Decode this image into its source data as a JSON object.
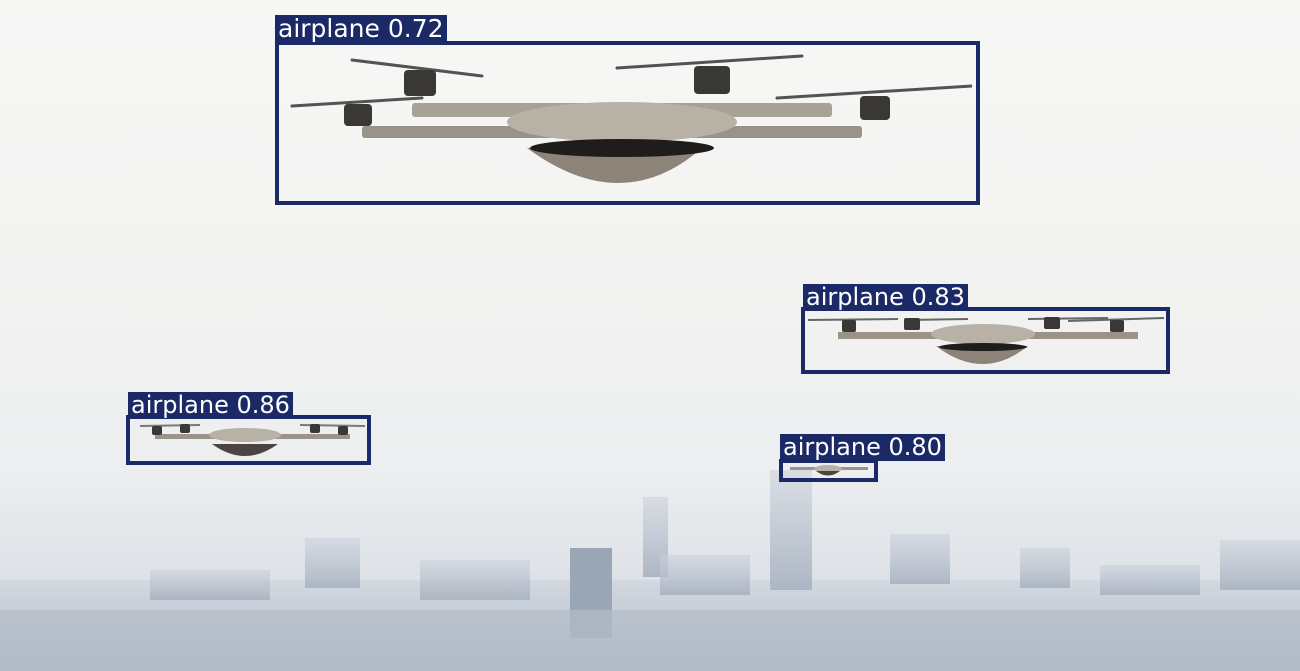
{
  "detections": [
    {
      "label": "airplane 0.72"
    },
    {
      "label": "airplane 0.83"
    },
    {
      "label": "airplane 0.86"
    },
    {
      "label": "airplane 0.80"
    }
  ],
  "colors": {
    "box": "#1b2a66",
    "label_text": "#ffffff"
  },
  "scene": {
    "background": "hazy sky over city skyline",
    "objects": "drones"
  }
}
